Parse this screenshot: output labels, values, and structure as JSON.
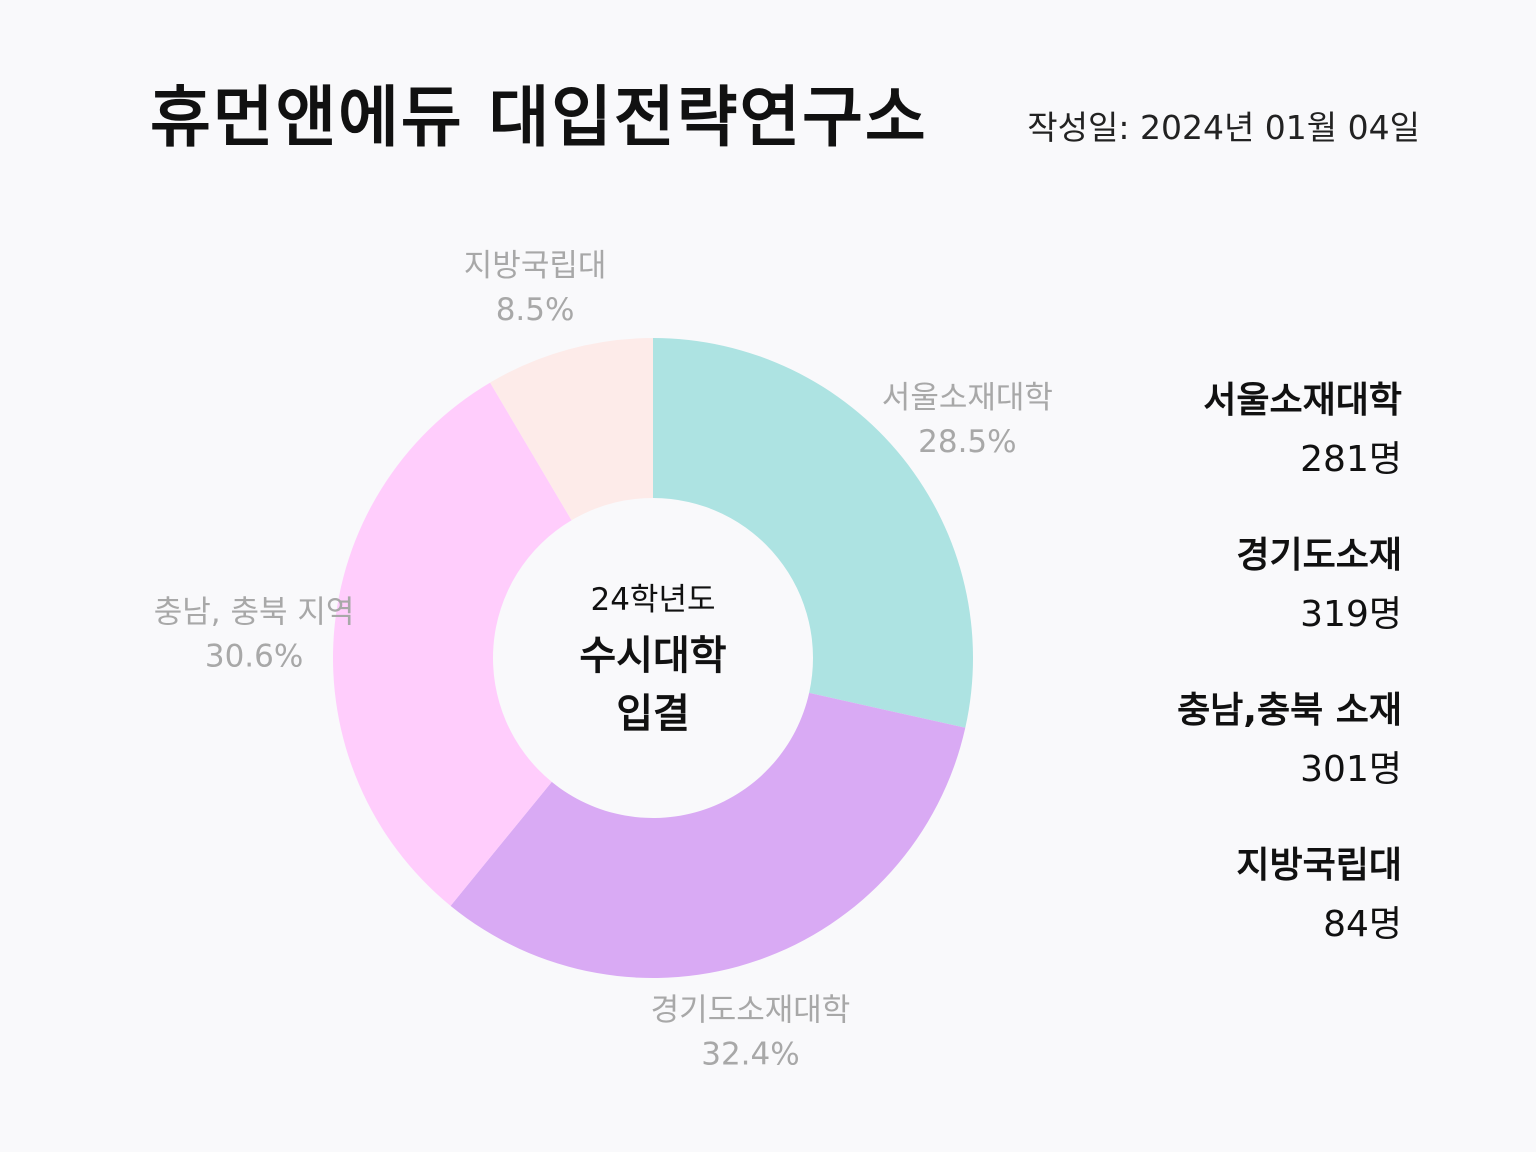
{
  "header": {
    "title": "휴먼앤에듀 대입전략연구소",
    "date": "작성일: 2024년 01월 04일"
  },
  "center": {
    "subtitle": "24학년도",
    "title_line1": "수시대학",
    "title_line2": "입결"
  },
  "chart_data": {
    "type": "pie",
    "donut": true,
    "categories": [
      "서울소재대학",
      "경기도소재대학",
      "충남, 충북 지역",
      "지방국립대"
    ],
    "values": [
      28.5,
      32.4,
      30.6,
      8.5
    ],
    "value_labels": [
      "28.5%",
      "32.4%",
      "30.6%",
      "8.5%"
    ],
    "colors": [
      "#ade3e2",
      "#d9aaf4",
      "#ffcdfc",
      "#fdebe9"
    ],
    "legend": "right"
  },
  "legend": {
    "items": [
      {
        "name": "서울소재대학",
        "count": "281명"
      },
      {
        "name": "경기도소재",
        "count": "319명"
      },
      {
        "name": "충남,충북 소재",
        "count": "301명"
      },
      {
        "name": "지방국립대",
        "count": "84명"
      }
    ]
  }
}
